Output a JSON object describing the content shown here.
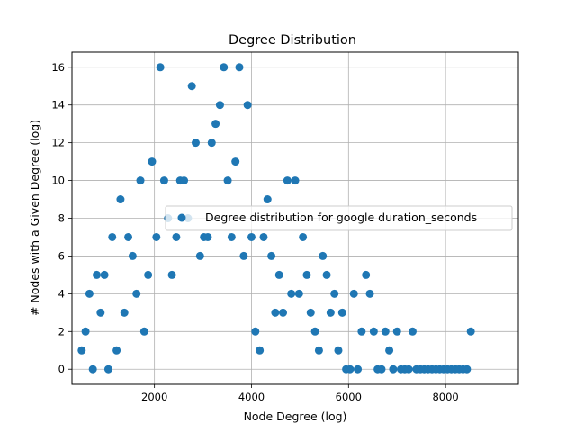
{
  "chart_data": {
    "type": "scatter",
    "title": "Degree Distribution",
    "xlabel": "Node Degree (log)",
    "ylabel": "# Nodes with a Given Degree (log)",
    "xlim": [
      300,
      9500
    ],
    "ylim": [
      -0.8,
      16.8
    ],
    "xticks": [
      2000,
      4000,
      6000,
      8000
    ],
    "xtick_labels": [
      "2000",
      "4000",
      "6000",
      "8000"
    ],
    "yticks": [
      0,
      2,
      4,
      6,
      8,
      10,
      12,
      14,
      16
    ],
    "ytick_labels": [
      "0",
      "2",
      "4",
      "6",
      "8",
      "10",
      "12",
      "14",
      "16"
    ],
    "grid": true,
    "legend_position": "center-right",
    "marker_color": "#1f77b4",
    "series": [
      {
        "name": "Degree distribution for google duration_seconds",
        "points": [
          [
            500,
            1
          ],
          [
            580,
            2
          ],
          [
            660,
            4
          ],
          [
            730,
            0
          ],
          [
            810,
            5
          ],
          [
            890,
            3
          ],
          [
            970,
            5
          ],
          [
            1050,
            0
          ],
          [
            1130,
            7
          ],
          [
            1220,
            1
          ],
          [
            1300,
            9
          ],
          [
            1380,
            3
          ],
          [
            1460,
            7
          ],
          [
            1550,
            6
          ],
          [
            1630,
            4
          ],
          [
            1710,
            10
          ],
          [
            1790,
            2
          ],
          [
            1870,
            5
          ],
          [
            1950,
            11
          ],
          [
            2040,
            7
          ],
          [
            2120,
            16
          ],
          [
            2200,
            10
          ],
          [
            2280,
            8
          ],
          [
            2360,
            5
          ],
          [
            2450,
            7
          ],
          [
            2530,
            10
          ],
          [
            2610,
            10
          ],
          [
            2690,
            8
          ],
          [
            2770,
            15
          ],
          [
            2850,
            12
          ],
          [
            2940,
            6
          ],
          [
            3020,
            7
          ],
          [
            3100,
            7
          ],
          [
            3180,
            12
          ],
          [
            3260,
            13
          ],
          [
            3350,
            14
          ],
          [
            3430,
            16
          ],
          [
            3510,
            10
          ],
          [
            3590,
            7
          ],
          [
            3670,
            11
          ],
          [
            3750,
            16
          ],
          [
            3840,
            6
          ],
          [
            3920,
            14
          ],
          [
            4000,
            7
          ],
          [
            4080,
            2
          ],
          [
            4170,
            1
          ],
          [
            4250,
            7
          ],
          [
            4330,
            9
          ],
          [
            4410,
            6
          ],
          [
            4490,
            3
          ],
          [
            4570,
            5
          ],
          [
            4650,
            3
          ],
          [
            4740,
            10
          ],
          [
            4820,
            4
          ],
          [
            4900,
            10
          ],
          [
            4980,
            4
          ],
          [
            5060,
            7
          ],
          [
            5140,
            5
          ],
          [
            5220,
            3
          ],
          [
            5310,
            2
          ],
          [
            5390,
            1
          ],
          [
            5470,
            6
          ],
          [
            5550,
            5
          ],
          [
            5630,
            3
          ],
          [
            5710,
            4
          ],
          [
            5790,
            1
          ],
          [
            5870,
            3
          ],
          [
            5950,
            0
          ],
          [
            6030,
            0
          ],
          [
            6110,
            4
          ],
          [
            6190,
            0
          ],
          [
            6270,
            2
          ],
          [
            6360,
            5
          ],
          [
            6440,
            4
          ],
          [
            6520,
            2
          ],
          [
            6600,
            0
          ],
          [
            6680,
            0
          ],
          [
            6760,
            2
          ],
          [
            6840,
            1
          ],
          [
            6920,
            0
          ],
          [
            7000,
            2
          ],
          [
            7080,
            0
          ],
          [
            7160,
            0
          ],
          [
            7240,
            0
          ],
          [
            7320,
            2
          ],
          [
            7400,
            0
          ],
          [
            7480,
            0
          ],
          [
            7560,
            0
          ],
          [
            7640,
            0
          ],
          [
            7720,
            0
          ],
          [
            7800,
            0
          ],
          [
            7880,
            0
          ],
          [
            7960,
            0
          ],
          [
            8040,
            0
          ],
          [
            8120,
            0
          ],
          [
            8200,
            0
          ],
          [
            8280,
            0
          ],
          [
            8360,
            0
          ],
          [
            8440,
            0
          ],
          [
            8520,
            2
          ]
        ]
      }
    ]
  }
}
